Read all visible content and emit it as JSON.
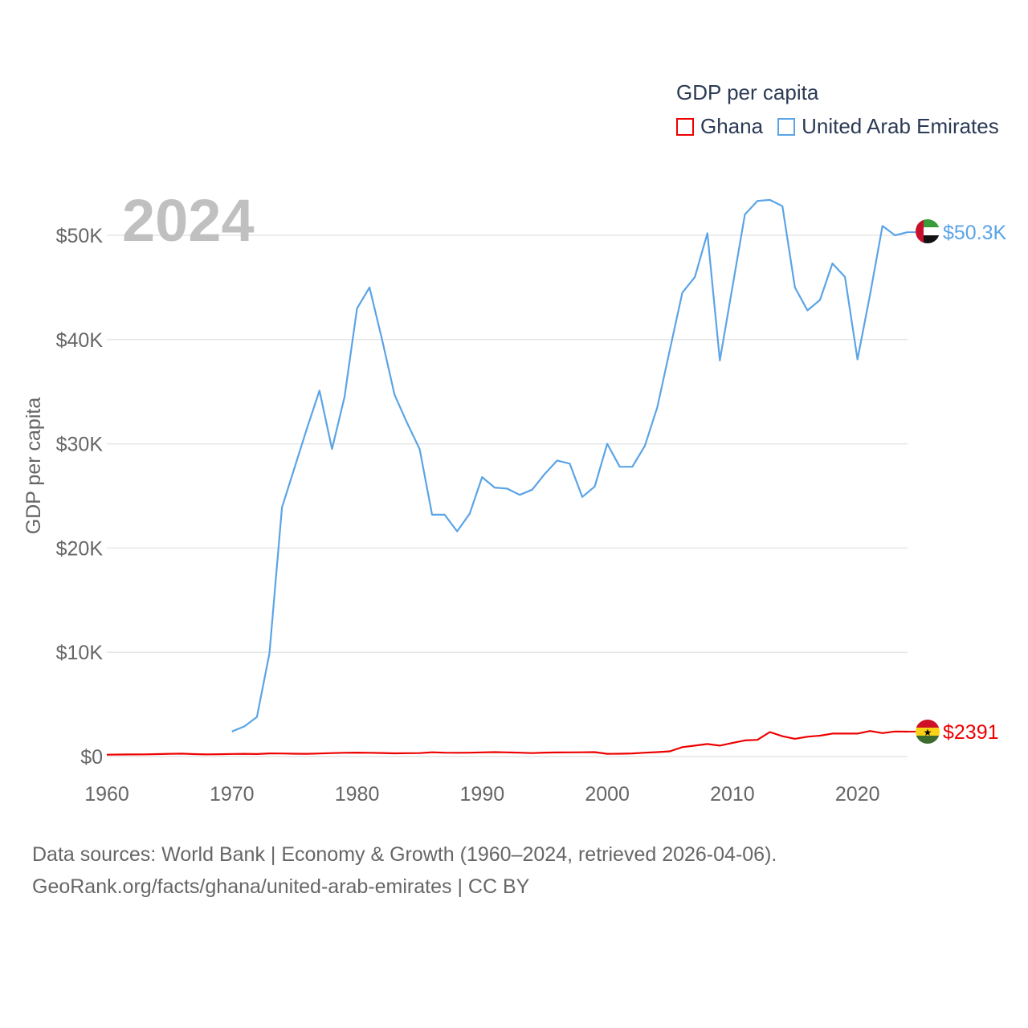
{
  "legend": {
    "title": "GDP per capita",
    "items": [
      {
        "label": "Ghana",
        "color": "#ee0000"
      },
      {
        "label": "United Arab Emirates",
        "color": "#5ba4e6"
      }
    ]
  },
  "year_label": "2024",
  "footer": {
    "line1": "Data sources: World Bank | Economy & Growth (1960–2024, retrieved 2026-04-06).",
    "line2": "GeoRank.org/facts/ghana/united-arab-emirates | CC BY"
  },
  "chart_data": {
    "type": "line",
    "title": "GDP per capita",
    "xlabel": "",
    "ylabel": "GDP per capita",
    "xlim": [
      1960,
      2024
    ],
    "ylim": [
      0,
      50000
    ],
    "grid": true,
    "legend_position": "top-right",
    "x_ticks": [
      1960,
      1970,
      1980,
      1990,
      2000,
      2010,
      2020
    ],
    "x_tick_labels": [
      "1960",
      "1970",
      "1980",
      "1990",
      "2000",
      "2010",
      "2020"
    ],
    "y_ticks": [
      0,
      10000,
      20000,
      30000,
      40000,
      50000
    ],
    "y_tick_labels": [
      "$0",
      "$10K",
      "$20K",
      "$30K",
      "$40K",
      "$50K"
    ],
    "series": [
      {
        "name": "Ghana",
        "color": "#ee0000",
        "end_label": "$2391",
        "flag": "ghana-flag",
        "x": [
          1960,
          1961,
          1962,
          1963,
          1964,
          1965,
          1966,
          1967,
          1968,
          1969,
          1970,
          1971,
          1972,
          1973,
          1974,
          1975,
          1976,
          1977,
          1978,
          1979,
          1980,
          1981,
          1982,
          1983,
          1984,
          1985,
          1986,
          1987,
          1988,
          1989,
          1990,
          1991,
          1992,
          1993,
          1994,
          1995,
          1996,
          1997,
          1998,
          1999,
          2000,
          2001,
          2002,
          2003,
          2004,
          2005,
          2006,
          2007,
          2008,
          2009,
          2010,
          2011,
          2012,
          2013,
          2014,
          2015,
          2016,
          2017,
          2018,
          2019,
          2020,
          2021,
          2022,
          2023,
          2024
        ],
        "values": [
          180,
          190,
          200,
          210,
          230,
          260,
          280,
          230,
          210,
          220,
          250,
          260,
          240,
          300,
          290,
          270,
          260,
          290,
          330,
          360,
          380,
          360,
          340,
          310,
          320,
          330,
          410,
          370,
          360,
          370,
          400,
          420,
          400,
          370,
          330,
          380,
          390,
          400,
          410,
          420,
          260,
          270,
          300,
          370,
          420,
          500,
          900,
          1050,
          1200,
          1050,
          1300,
          1550,
          1600,
          2350,
          1950,
          1700,
          1900,
          2000,
          2200,
          2200,
          2200,
          2450,
          2250,
          2400,
          2391
        ]
      },
      {
        "name": "United Arab Emirates",
        "color": "#5ba4e6",
        "end_label": "$50.3K",
        "flag": "uae-flag",
        "x": [
          1970,
          1971,
          1972,
          1973,
          1974,
          1975,
          1976,
          1977,
          1978,
          1979,
          1980,
          1981,
          1982,
          1983,
          1984,
          1985,
          1986,
          1987,
          1988,
          1989,
          1990,
          1991,
          1992,
          1993,
          1994,
          1995,
          1996,
          1997,
          1998,
          1999,
          2000,
          2001,
          2002,
          2003,
          2004,
          2005,
          2006,
          2007,
          2008,
          2009,
          2010,
          2011,
          2012,
          2013,
          2014,
          2015,
          2016,
          2017,
          2018,
          2019,
          2020,
          2021,
          2022,
          2023,
          2024
        ],
        "values": [
          2400,
          2900,
          3800,
          9900,
          23900,
          27700,
          31500,
          35100,
          29500,
          34500,
          43000,
          45000,
          40000,
          34700,
          32000,
          29500,
          23200,
          23200,
          21600,
          23300,
          26800,
          25800,
          25700,
          25100,
          25600,
          27100,
          28400,
          28100,
          24900,
          25900,
          30000,
          27800,
          27800,
          29800,
          33500,
          39000,
          44500,
          46000,
          50200,
          38000,
          45000,
          52000,
          53300,
          53400,
          52800,
          45000,
          42800,
          43800,
          47300,
          46000,
          38100,
          44300,
          50900,
          50000,
          50300
        ]
      }
    ]
  }
}
